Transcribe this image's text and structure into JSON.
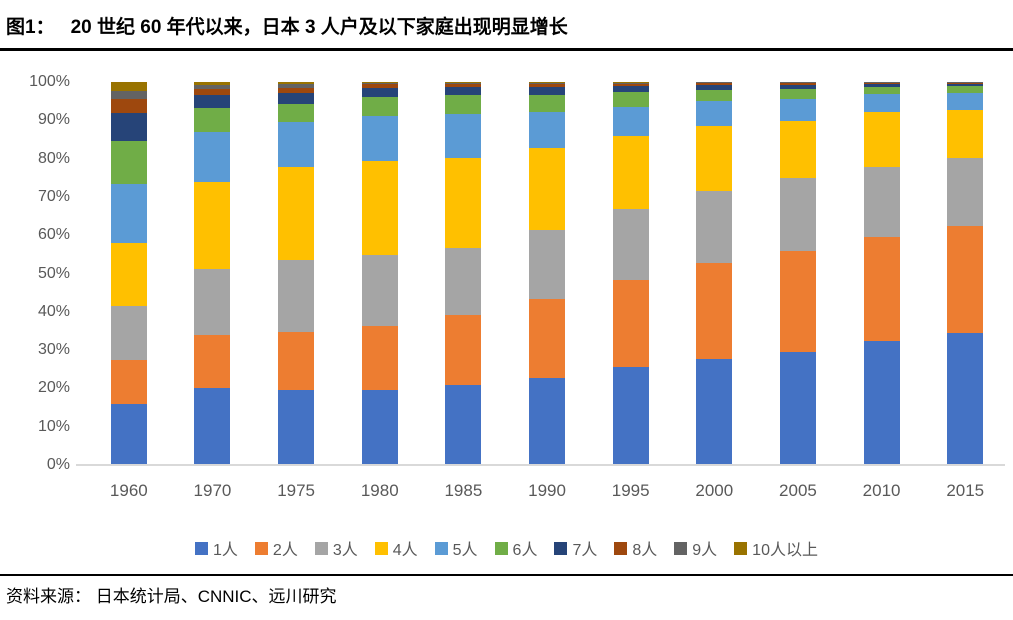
{
  "figure": {
    "title_prefix": "图1：",
    "title": "20 世纪 60 年代以来，日本 3 人户及以下家庭出现明显增长",
    "source": "资料来源： 日本统计局、CNNIC、远川研究"
  },
  "chart_data": {
    "type": "bar",
    "variant": "stacked-100-percent",
    "title": "20 世纪 60 年代以来，日本 3 人户及以下家庭出现明显增长",
    "xlabel": "",
    "ylabel": "",
    "ylim": [
      0,
      100
    ],
    "yticks": [
      "0%",
      "10%",
      "20%",
      "30%",
      "40%",
      "50%",
      "60%",
      "70%",
      "80%",
      "90%",
      "100%"
    ],
    "grid": false,
    "legend_position": "bottom",
    "axis_text_color": "#595959",
    "axis_line_color": "#d9d9d9",
    "categories": [
      "1960",
      "1970",
      "1975",
      "1980",
      "1985",
      "1990",
      "1995",
      "2000",
      "2005",
      "2010",
      "2015"
    ],
    "series": [
      {
        "name": "1人",
        "color": "#4472C4",
        "values": [
          16.0,
          20.0,
          19.7,
          19.6,
          21.0,
          22.8,
          25.6,
          27.6,
          29.5,
          32.4,
          34.5
        ]
      },
      {
        "name": "2人",
        "color": "#ED7D31",
        "values": [
          11.5,
          14.0,
          15.1,
          16.6,
          18.2,
          20.6,
          22.6,
          25.1,
          26.5,
          27.2,
          27.9
        ]
      },
      {
        "name": "3人",
        "color": "#A5A5A5",
        "values": [
          14.0,
          17.2,
          18.7,
          18.6,
          17.5,
          18.0,
          18.7,
          18.8,
          18.9,
          18.2,
          17.8
        ]
      },
      {
        "name": "4人",
        "color": "#FFC000",
        "values": [
          16.5,
          22.8,
          24.3,
          24.6,
          23.5,
          21.5,
          19.0,
          16.9,
          14.8,
          14.4,
          12.5
        ]
      },
      {
        "name": "5人",
        "color": "#5B9BD5",
        "values": [
          15.5,
          12.9,
          11.7,
          11.7,
          11.5,
          9.4,
          7.6,
          6.6,
          5.8,
          4.7,
          4.5
        ]
      },
      {
        "name": "6人",
        "color": "#70AD47",
        "values": [
          11.0,
          6.2,
          4.9,
          5.0,
          4.8,
          4.4,
          3.9,
          2.9,
          2.6,
          1.9,
          1.7
        ]
      },
      {
        "name": "7人",
        "color": "#264478",
        "values": [
          7.4,
          3.4,
          2.7,
          2.4,
          2.2,
          1.9,
          1.6,
          1.3,
          1.2,
          0.8,
          0.7
        ]
      },
      {
        "name": "8人",
        "color": "#9E480E",
        "values": [
          3.8,
          1.7,
          1.4,
          0.9,
          0.8,
          0.8,
          0.6,
          0.5,
          0.4,
          0.25,
          0.25
        ]
      },
      {
        "name": "9人",
        "color": "#636363",
        "values": [
          2.0,
          1.0,
          0.9,
          0.4,
          0.3,
          0.4,
          0.25,
          0.2,
          0.2,
          0.1,
          0.1
        ]
      },
      {
        "name": "10人以上",
        "color": "#997300",
        "values": [
          2.3,
          0.8,
          0.6,
          0.2,
          0.2,
          0.2,
          0.15,
          0.1,
          0.1,
          0.05,
          0.05
        ]
      }
    ]
  }
}
